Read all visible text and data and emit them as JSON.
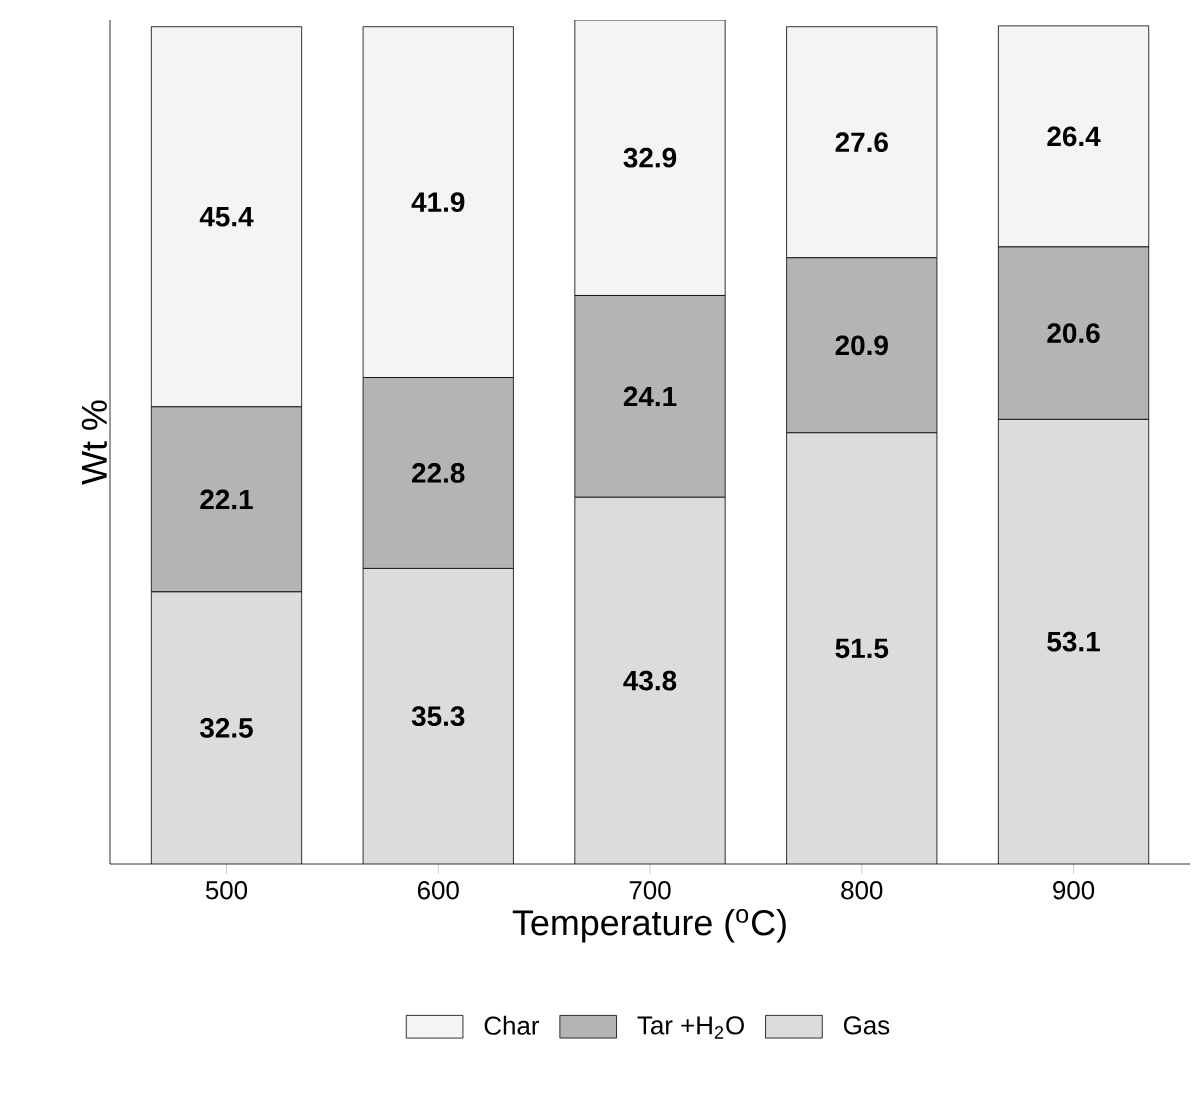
{
  "chart_data": {
    "type": "bar",
    "stacked": true,
    "xlabel": "Temperature ($^{o}$C)",
    "ylabel": "Wt %",
    "categories": [
      "500",
      "600",
      "700",
      "800",
      "900"
    ],
    "series": [
      {
        "name": "Gas",
        "color": "#dcdcdc",
        "values": [
          32.5,
          35.3,
          43.8,
          51.5,
          53.1
        ]
      },
      {
        "name": "Tar +H$_{2}$O",
        "color": "#b4b4b4",
        "values": [
          22.1,
          22.8,
          24.1,
          20.9,
          20.6
        ]
      },
      {
        "name": "Char",
        "color": "#f4f4f4",
        "values": [
          45.4,
          41.9,
          32.9,
          27.6,
          26.4
        ]
      }
    ],
    "tick_labels": "x",
    "data_labels": true,
    "legend": "bottom",
    "grid": false
  }
}
